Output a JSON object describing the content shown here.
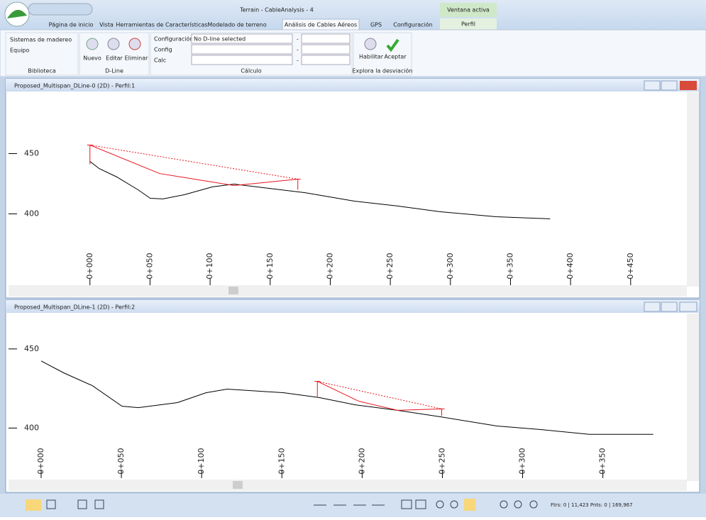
{
  "title_bar": {
    "title": "Terrain - CableAnalysis - 4",
    "context": "Ventana activa"
  },
  "tabs": [
    "Página de inicio",
    "Vista",
    "Herramientas de Características",
    "Modelado de terreno",
    "Análisis de Cables Aéreos",
    "GPS",
    "Configuración"
  ],
  "context_tab": "Perfil",
  "ribbon": {
    "biblioteca": {
      "label": "Biblioteca",
      "items": [
        "Sistemas de madereo",
        "Equipo"
      ]
    },
    "dline": {
      "label": "D-Line",
      "items": [
        "Nuevo",
        "Editar",
        "Eliminar"
      ]
    },
    "calculo": {
      "label": "Cálculo",
      "fields": [
        "Configuración",
        "Config",
        "Calc"
      ],
      "selection": "No D-line selected",
      "dashes": [
        "-",
        "-",
        "-"
      ]
    },
    "desviacion": {
      "label": "Explora la desviación",
      "items": [
        "Habilitar",
        "Aceptar"
      ]
    }
  },
  "views": [
    {
      "title": "Proposed_Multispan_DLine-0 (2D) - Perfil:1",
      "profile": {
        "xlim": [
          -66,
          495
        ],
        "ylim": [
          342,
          498
        ],
        "yticks": [
          400,
          450
        ],
        "xticks": [
          {
            "value": 0,
            "label": "0+000"
          },
          {
            "value": 50,
            "label": "0+050"
          },
          {
            "value": 100,
            "label": "0+100"
          },
          {
            "value": 150,
            "label": "0+150"
          },
          {
            "value": 200,
            "label": "0+200"
          },
          {
            "value": 250,
            "label": "0+250"
          },
          {
            "value": 300,
            "label": "0+300"
          },
          {
            "value": 350,
            "label": "0+350"
          },
          {
            "value": 400,
            "label": "0+400"
          },
          {
            "value": 450,
            "label": "0+450"
          }
        ],
        "terrain": {
          "x": [
            0,
            7.7,
            22.4,
            40,
            50.2,
            60.8,
            78.5,
            102,
            120,
            149,
            179,
            220,
            256,
            291,
            338,
            383
          ],
          "values": [
            443.5,
            437.6,
            430.6,
            420,
            412.9,
            412.4,
            415.9,
            422.4,
            424.7,
            421.2,
            417.6,
            410.6,
            406.5,
            401.8,
            397.6,
            395.9
          ],
          "color": "#000000"
        },
        "cable": {
          "x": [
            0,
            57.9,
            119.8,
            173
          ],
          "values": [
            457.1,
            433.5,
            423.5,
            428.8
          ],
          "color": "#e8141c"
        },
        "supports": [
          {
            "x": 0,
            "base": 441.2,
            "top": 457.1
          },
          {
            "x": 173,
            "base": 420,
            "top": 428.8
          }
        ]
      }
    },
    {
      "title": "Proposed_Multispan_DLine-1 (2D) - Perfil:2",
      "profile": {
        "xlim": [
          -19,
          401
        ],
        "ylim": [
          367,
          471
        ],
        "yticks": [
          400,
          450
        ],
        "xticks": [
          {
            "value": 0,
            "label": "0+000"
          },
          {
            "value": 50,
            "label": "0+050"
          },
          {
            "value": 100,
            "label": "0+100"
          },
          {
            "value": 150,
            "label": "0+150"
          },
          {
            "value": 200,
            "label": "0+200"
          },
          {
            "value": 250,
            "label": "0+250"
          },
          {
            "value": 300,
            "label": "0+300"
          },
          {
            "value": 350,
            "label": "0+350"
          }
        ],
        "terrain": {
          "x": [
            0,
            14.2,
            31.9,
            50.4,
            60.6,
            85,
            102.7,
            115.9,
            151.3,
            173.5,
            195.6,
            222,
            248.7,
            284,
            310.6,
            341.6,
            381.4
          ],
          "values": [
            442.4,
            434.8,
            426.8,
            413.8,
            412.9,
            416.1,
            422.3,
            424.6,
            422.3,
            419.2,
            414.7,
            411.2,
            407.1,
            401.3,
            399.1,
            396,
            396
          ],
          "color": "#000000"
        },
        "cable": {
          "x": [
            172.1,
            197.8,
            222,
            249.6
          ],
          "values": [
            429.5,
            417,
            411.2,
            412.1
          ],
          "color": "#e8141c"
        },
        "supports": [
          {
            "x": 172.1,
            "base": 419.2,
            "top": 429.5
          },
          {
            "x": 249.6,
            "base": 407.6,
            "top": 412.1
          }
        ]
      }
    }
  ],
  "status": "Ftrs: 0 | 11,423  Pnts: 0 | 169,967"
}
